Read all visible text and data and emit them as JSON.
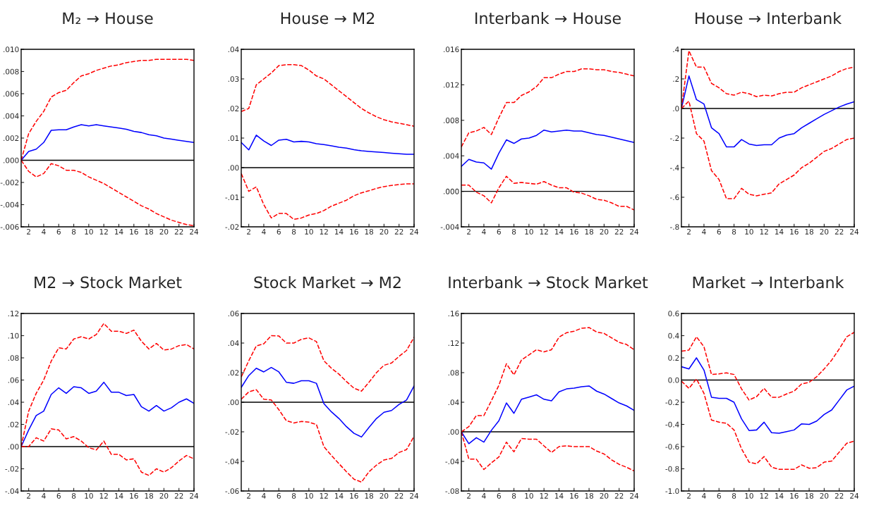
{
  "chart_data": [
    {
      "type": "line",
      "title": "M₂ → House",
      "x": [
        1,
        2,
        3,
        4,
        5,
        6,
        7,
        8,
        9,
        10,
        11,
        12,
        13,
        14,
        15,
        16,
        17,
        18,
        19,
        20,
        21,
        22,
        23,
        24
      ],
      "xlim": [
        1,
        24
      ],
      "xticks": [
        2,
        4,
        6,
        8,
        10,
        12,
        14,
        16,
        18,
        20,
        22,
        24
      ],
      "ylim": [
        -0.006,
        0.01
      ],
      "yticks": [
        {
          "value": 0.01,
          "label": ".010"
        },
        {
          "value": 0.008,
          "label": ".008"
        },
        {
          "value": 0.006,
          "label": ".006"
        },
        {
          "value": 0.004,
          "label": ".004"
        },
        {
          "value": 0.002,
          "label": ".002"
        },
        {
          "value": 0,
          "label": ".000"
        },
        {
          "value": -0.002,
          "label": "-.002"
        },
        {
          "value": -0.004,
          "label": "-.004"
        },
        {
          "value": -0.006,
          "label": "-.006"
        }
      ],
      "grid": false,
      "legend": false,
      "ref_lines": [
        {
          "axis": "y",
          "value": 0,
          "color": "#000000"
        }
      ],
      "series": [
        {
          "color": "#0000ff",
          "line_style": "solid",
          "values": [
            0,
            0.0008,
            0.001,
            0.0016,
            0.0027,
            0.00275,
            0.00275,
            0.003,
            0.0032,
            0.0031,
            0.0032,
            0.0031,
            0.003,
            0.0029,
            0.0028,
            0.0026,
            0.0025,
            0.0023,
            0.0022,
            0.002,
            0.0019,
            0.0018,
            0.0017,
            0.0016
          ]
        },
        {
          "color": "#ff0000",
          "line_style": "dashed",
          "values": [
            0,
            0.0024,
            0.0035,
            0.0044,
            0.0057,
            0.0061,
            0.0063,
            0.007,
            0.0076,
            0.0078,
            0.0081,
            0.0083,
            0.0085,
            0.0086,
            0.0088,
            0.0089,
            0.009,
            0.009,
            0.0091,
            0.0091,
            0.0091,
            0.0091,
            0.0091,
            0.009
          ]
        },
        {
          "color": "#ff0000",
          "line_style": "dashed",
          "values": [
            0,
            -0.001,
            -0.0015,
            -0.0012,
            -0.0003,
            -0.0005,
            -0.0009,
            -0.0009,
            -0.0011,
            -0.0015,
            -0.0018,
            -0.0021,
            -0.0025,
            -0.0029,
            -0.0033,
            -0.0037,
            -0.0041,
            -0.0044,
            -0.0048,
            -0.0051,
            -0.0054,
            -0.0056,
            -0.0058,
            -0.0059
          ]
        }
      ]
    },
    {
      "type": "line",
      "title": "House → M2",
      "x": [
        1,
        2,
        3,
        4,
        5,
        6,
        7,
        8,
        9,
        10,
        11,
        12,
        13,
        14,
        15,
        16,
        17,
        18,
        19,
        20,
        21,
        22,
        23,
        24
      ],
      "xlim": [
        1,
        24
      ],
      "xticks": [
        2,
        4,
        6,
        8,
        10,
        12,
        14,
        16,
        18,
        20,
        22,
        24
      ],
      "ylim": [
        -0.02,
        0.04
      ],
      "yticks": [
        {
          "value": 0.04,
          "label": ".04"
        },
        {
          "value": 0.03,
          "label": ".03"
        },
        {
          "value": 0.02,
          "label": ".02"
        },
        {
          "value": 0.01,
          "label": ".01"
        },
        {
          "value": 0,
          "label": ".00"
        },
        {
          "value": -0.01,
          "label": "-.01"
        },
        {
          "value": -0.02,
          "label": "-.02"
        }
      ],
      "grid": false,
      "legend": false,
      "ref_lines": [
        {
          "axis": "y",
          "value": 0,
          "color": "#000000"
        }
      ],
      "series": [
        {
          "color": "#0000ff",
          "line_style": "solid",
          "values": [
            0.0085,
            0.006,
            0.011,
            0.009,
            0.0075,
            0.0093,
            0.0096,
            0.0087,
            0.0089,
            0.0087,
            0.0081,
            0.0078,
            0.0074,
            0.0069,
            0.0066,
            0.0061,
            0.0057,
            0.0055,
            0.0053,
            0.0051,
            0.0049,
            0.0047,
            0.0045,
            0.0045
          ]
        },
        {
          "color": "#ff0000",
          "line_style": "dashed",
          "values": [
            0.019,
            0.02,
            0.028,
            0.03,
            0.032,
            0.0345,
            0.0348,
            0.0348,
            0.0345,
            0.033,
            0.031,
            0.03,
            0.028,
            0.026,
            0.024,
            0.022,
            0.02,
            0.0185,
            0.0172,
            0.0162,
            0.0155,
            0.015,
            0.0145,
            0.014
          ]
        },
        {
          "color": "#ff0000",
          "line_style": "dashed",
          "values": [
            -0.002,
            -0.008,
            -0.0065,
            -0.0125,
            -0.017,
            -0.0155,
            -0.0155,
            -0.0175,
            -0.017,
            -0.016,
            -0.0155,
            -0.0145,
            -0.013,
            -0.012,
            -0.011,
            -0.0095,
            -0.0085,
            -0.0078,
            -0.007,
            -0.0064,
            -0.006,
            -0.0057,
            -0.0055,
            -0.0055
          ]
        }
      ]
    },
    {
      "type": "line",
      "title": "Interbank → House",
      "x": [
        1,
        2,
        3,
        4,
        5,
        6,
        7,
        8,
        9,
        10,
        11,
        12,
        13,
        14,
        15,
        16,
        17,
        18,
        19,
        20,
        21,
        22,
        23,
        24
      ],
      "xlim": [
        1,
        24
      ],
      "xticks": [
        2,
        4,
        6,
        8,
        10,
        12,
        14,
        16,
        18,
        20,
        22,
        24
      ],
      "ylim": [
        -0.004,
        0.016
      ],
      "yticks": [
        {
          "value": 0.016,
          "label": ".016"
        },
        {
          "value": 0.012,
          "label": ".012"
        },
        {
          "value": 0.008,
          "label": ".008"
        },
        {
          "value": 0.004,
          "label": ".004"
        },
        {
          "value": 0,
          "label": ".000"
        },
        {
          "value": -0.004,
          "label": "-.004"
        }
      ],
      "grid": false,
      "legend": false,
      "ref_lines": [
        {
          "axis": "y",
          "value": 0,
          "color": "#000000"
        }
      ],
      "series": [
        {
          "color": "#0000ff",
          "line_style": "solid",
          "values": [
            0.0028,
            0.0036,
            0.0033,
            0.0032,
            0.0025,
            0.0043,
            0.0058,
            0.0054,
            0.0059,
            0.006,
            0.0063,
            0.0069,
            0.0067,
            0.0068,
            0.0069,
            0.0068,
            0.0068,
            0.0066,
            0.0064,
            0.0063,
            0.0061,
            0.0059,
            0.0057,
            0.0055
          ]
        },
        {
          "color": "#ff0000",
          "line_style": "dashed",
          "values": [
            0.005,
            0.0066,
            0.0068,
            0.0072,
            0.0064,
            0.0083,
            0.01,
            0.01,
            0.0108,
            0.0112,
            0.0118,
            0.0128,
            0.0128,
            0.0132,
            0.0135,
            0.0135,
            0.0138,
            0.0138,
            0.0137,
            0.0137,
            0.0135,
            0.0134,
            0.0132,
            0.013
          ]
        },
        {
          "color": "#ff0000",
          "line_style": "dashed",
          "values": [
            0.0007,
            0.0007,
            -0.0001,
            -0.0005,
            -0.0013,
            0.0004,
            0.0017,
            0.0009,
            0.001,
            0.0009,
            0.0008,
            0.0011,
            0.0007,
            0.0004,
            0.0004,
            -0.0001,
            -0.0002,
            -0.0005,
            -0.0009,
            -0.001,
            -0.0013,
            -0.0017,
            -0.0017,
            -0.0021
          ]
        }
      ]
    },
    {
      "type": "line",
      "title": "House → Interbank",
      "x": [
        1,
        2,
        3,
        4,
        5,
        6,
        7,
        8,
        9,
        10,
        11,
        12,
        13,
        14,
        15,
        16,
        17,
        18,
        19,
        20,
        21,
        22,
        23,
        24
      ],
      "xlim": [
        1,
        24
      ],
      "xticks": [
        2,
        4,
        6,
        8,
        10,
        12,
        14,
        16,
        18,
        20,
        22,
        24
      ],
      "ylim": [
        -0.8,
        0.4
      ],
      "yticks": [
        {
          "value": 0.4,
          "label": ".4"
        },
        {
          "value": 0.2,
          "label": ".2"
        },
        {
          "value": 0,
          "label": ".0"
        },
        {
          "value": -0.2,
          "label": "-.2"
        },
        {
          "value": -0.4,
          "label": "-.4"
        },
        {
          "value": -0.6,
          "label": "-.6"
        },
        {
          "value": -0.8,
          "label": "-.8"
        }
      ],
      "grid": false,
      "legend": false,
      "ref_lines": [
        {
          "axis": "y",
          "value": 0,
          "color": "#000000"
        }
      ],
      "series": [
        {
          "color": "#0000ff",
          "line_style": "solid",
          "values": [
            0,
            0.22,
            0.06,
            0.03,
            -0.13,
            -0.17,
            -0.26,
            -0.26,
            -0.21,
            -0.24,
            -0.25,
            -0.245,
            -0.245,
            -0.2,
            -0.18,
            -0.17,
            -0.13,
            -0.1,
            -0.07,
            -0.04,
            -0.015,
            0.01,
            0.03,
            0.045
          ]
        },
        {
          "color": "#ff0000",
          "line_style": "dashed",
          "values": [
            0,
            0.39,
            0.28,
            0.28,
            0.17,
            0.14,
            0.1,
            0.09,
            0.11,
            0.1,
            0.08,
            0.09,
            0.085,
            0.1,
            0.11,
            0.11,
            0.14,
            0.16,
            0.18,
            0.2,
            0.22,
            0.25,
            0.27,
            0.28
          ]
        },
        {
          "color": "#ff0000",
          "line_style": "dashed",
          "values": [
            0,
            0.05,
            -0.17,
            -0.22,
            -0.42,
            -0.48,
            -0.61,
            -0.61,
            -0.54,
            -0.58,
            -0.59,
            -0.58,
            -0.57,
            -0.51,
            -0.48,
            -0.45,
            -0.4,
            -0.37,
            -0.33,
            -0.29,
            -0.27,
            -0.24,
            -0.21,
            -0.2
          ]
        }
      ]
    },
    {
      "type": "line",
      "title": "M2 → Stock Market",
      "x": [
        1,
        2,
        3,
        4,
        5,
        6,
        7,
        8,
        9,
        10,
        11,
        12,
        13,
        14,
        15,
        16,
        17,
        18,
        19,
        20,
        21,
        22,
        23,
        24
      ],
      "xlim": [
        1,
        24
      ],
      "xticks": [
        2,
        4,
        6,
        8,
        10,
        12,
        14,
        16,
        18,
        20,
        22,
        24
      ],
      "ylim": [
        -0.04,
        0.12
      ],
      "yticks": [
        {
          "value": 0.12,
          "label": ".12"
        },
        {
          "value": 0.1,
          "label": ".10"
        },
        {
          "value": 0.08,
          "label": ".08"
        },
        {
          "value": 0.06,
          "label": ".06"
        },
        {
          "value": 0.04,
          "label": ".04"
        },
        {
          "value": 0.02,
          "label": ".02"
        },
        {
          "value": 0,
          "label": ".00"
        },
        {
          "value": -0.02,
          "label": "-.02"
        },
        {
          "value": -0.04,
          "label": "-.04"
        }
      ],
      "grid": false,
      "legend": false,
      "ref_lines": [
        {
          "axis": "y",
          "value": 0,
          "color": "#000000"
        }
      ],
      "series": [
        {
          "color": "#0000ff",
          "line_style": "solid",
          "values": [
            0,
            0.015,
            0.028,
            0.032,
            0.047,
            0.053,
            0.048,
            0.054,
            0.053,
            0.048,
            0.05,
            0.058,
            0.049,
            0.049,
            0.046,
            0.047,
            0.036,
            0.032,
            0.037,
            0.032,
            0.035,
            0.04,
            0.043,
            0.039
          ]
        },
        {
          "color": "#ff0000",
          "line_style": "dashed",
          "values": [
            0,
            0.032,
            0.048,
            0.06,
            0.077,
            0.089,
            0.088,
            0.097,
            0.099,
            0.097,
            0.101,
            0.111,
            0.104,
            0.104,
            0.102,
            0.105,
            0.095,
            0.088,
            0.093,
            0.087,
            0.088,
            0.091,
            0.092,
            0.088
          ]
        },
        {
          "color": "#ff0000",
          "line_style": "dashed",
          "values": [
            0,
            0,
            0.008,
            0.005,
            0.016,
            0.015,
            0.007,
            0.009,
            0.005,
            -0.001,
            -0.003,
            0.005,
            -0.007,
            -0.007,
            -0.012,
            -0.011,
            -0.023,
            -0.026,
            -0.02,
            -0.023,
            -0.019,
            -0.013,
            -0.008,
            -0.011
          ]
        }
      ]
    },
    {
      "type": "line",
      "title": "Stock Market → M2",
      "x": [
        1,
        2,
        3,
        4,
        5,
        6,
        7,
        8,
        9,
        10,
        11,
        12,
        13,
        14,
        15,
        16,
        17,
        18,
        19,
        20,
        21,
        22,
        23,
        24
      ],
      "xlim": [
        1,
        24
      ],
      "xticks": [
        2,
        4,
        6,
        8,
        10,
        12,
        14,
        16,
        18,
        20,
        22,
        24
      ],
      "ylim": [
        -0.06,
        0.06
      ],
      "yticks": [
        {
          "value": 0.06,
          "label": ".06"
        },
        {
          "value": 0.04,
          "label": ".04"
        },
        {
          "value": 0.02,
          "label": ".02"
        },
        {
          "value": 0,
          "label": ".00"
        },
        {
          "value": -0.02,
          "label": "-.02"
        },
        {
          "value": -0.04,
          "label": "-.04"
        },
        {
          "value": -0.06,
          "label": "-.06"
        }
      ],
      "grid": false,
      "legend": false,
      "ref_lines": [
        {
          "axis": "y",
          "value": 0,
          "color": "#000000"
        }
      ],
      "series": [
        {
          "color": "#0000ff",
          "line_style": "solid",
          "values": [
            0.01,
            0.018,
            0.023,
            0.0205,
            0.0235,
            0.0205,
            0.0135,
            0.0128,
            0.0145,
            0.0145,
            0.0128,
            -0.001,
            -0.0065,
            -0.011,
            -0.0165,
            -0.021,
            -0.0235,
            -0.017,
            -0.011,
            -0.0068,
            -0.0056,
            -0.0015,
            0.0015,
            0.011
          ]
        },
        {
          "color": "#ff0000",
          "line_style": "dashed",
          "values": [
            0.017,
            0.028,
            0.038,
            0.0395,
            0.045,
            0.0448,
            0.04,
            0.04,
            0.0425,
            0.0435,
            0.041,
            0.028,
            0.023,
            0.019,
            0.014,
            0.0095,
            0.0075,
            0.0135,
            0.02,
            0.025,
            0.0265,
            0.031,
            0.035,
            0.044
          ]
        },
        {
          "color": "#ff0000",
          "line_style": "dashed",
          "values": [
            0.002,
            0.007,
            0.0085,
            0.002,
            0.0015,
            -0.005,
            -0.0125,
            -0.014,
            -0.013,
            -0.0135,
            -0.015,
            -0.03,
            -0.036,
            -0.0415,
            -0.047,
            -0.052,
            -0.054,
            -0.047,
            -0.0425,
            -0.039,
            -0.038,
            -0.034,
            -0.032,
            -0.023
          ]
        }
      ]
    },
    {
      "type": "line",
      "title": "Interbank → Stock Market",
      "x": [
        1,
        2,
        3,
        4,
        5,
        6,
        7,
        8,
        9,
        10,
        11,
        12,
        13,
        14,
        15,
        16,
        17,
        18,
        19,
        20,
        21,
        22,
        23,
        24
      ],
      "xlim": [
        1,
        24
      ],
      "xticks": [
        2,
        4,
        6,
        8,
        10,
        12,
        14,
        16,
        18,
        20,
        22,
        24
      ],
      "ylim": [
        -0.08,
        0.16
      ],
      "yticks": [
        {
          "value": 0.16,
          "label": ".16"
        },
        {
          "value": 0.12,
          "label": ".12"
        },
        {
          "value": 0.08,
          "label": ".08"
        },
        {
          "value": 0.04,
          "label": ".04"
        },
        {
          "value": 0,
          "label": ".00"
        },
        {
          "value": -0.04,
          "label": "-.04"
        },
        {
          "value": -0.08,
          "label": "-.08"
        }
      ],
      "grid": false,
      "legend": false,
      "ref_lines": [
        {
          "axis": "y",
          "value": 0,
          "color": "#000000"
        }
      ],
      "series": [
        {
          "color": "#0000ff",
          "line_style": "solid",
          "values": [
            0,
            -0.016,
            -0.008,
            -0.014,
            0.002,
            0.015,
            0.039,
            0.025,
            0.044,
            0.047,
            0.05,
            0.044,
            0.042,
            0.054,
            0.058,
            0.059,
            0.061,
            0.062,
            0.055,
            0.051,
            0.045,
            0.039,
            0.035,
            0.029
          ]
        },
        {
          "color": "#ff0000",
          "line_style": "dashed",
          "values": [
            0,
            0.007,
            0.022,
            0.022,
            0.042,
            0.063,
            0.092,
            0.077,
            0.097,
            0.104,
            0.111,
            0.108,
            0.111,
            0.128,
            0.134,
            0.136,
            0.14,
            0.141,
            0.135,
            0.133,
            0.127,
            0.121,
            0.118,
            0.111
          ]
        },
        {
          "color": "#ff0000",
          "line_style": "dashed",
          "values": [
            0,
            -0.037,
            -0.037,
            -0.051,
            -0.042,
            -0.034,
            -0.014,
            -0.027,
            -0.009,
            -0.01,
            -0.01,
            -0.019,
            -0.028,
            -0.02,
            -0.019,
            -0.02,
            -0.02,
            -0.02,
            -0.026,
            -0.03,
            -0.038,
            -0.044,
            -0.048,
            -0.053
          ]
        }
      ]
    },
    {
      "type": "line",
      "title": "Market → Interbank",
      "x": [
        1,
        2,
        3,
        4,
        5,
        6,
        7,
        8,
        9,
        10,
        11,
        12,
        13,
        14,
        15,
        16,
        17,
        18,
        19,
        20,
        21,
        22,
        23,
        24
      ],
      "xlim": [
        1,
        24
      ],
      "xticks": [
        2,
        4,
        6,
        8,
        10,
        12,
        14,
        16,
        18,
        20,
        22,
        24
      ],
      "ylim": [
        -1.0,
        0.6
      ],
      "yticks": [
        {
          "value": 0.6,
          "label": "0.6"
        },
        {
          "value": 0.4,
          "label": "0.4"
        },
        {
          "value": 0.2,
          "label": "0.2"
        },
        {
          "value": 0,
          "label": "0.0"
        },
        {
          "value": -0.2,
          "label": "-0.2"
        },
        {
          "value": -0.4,
          "label": "-0.4"
        },
        {
          "value": -0.6,
          "label": "-0.6"
        },
        {
          "value": -0.8,
          "label": "-0.8"
        },
        {
          "value": -1.0,
          "label": "-1.0"
        }
      ],
      "grid": false,
      "legend": false,
      "ref_lines": [
        {
          "axis": "y",
          "value": 0,
          "color": "#000000"
        }
      ],
      "series": [
        {
          "color": "#0000ff",
          "line_style": "solid",
          "values": [
            0.12,
            0.1,
            0.2,
            0.09,
            -0.155,
            -0.165,
            -0.165,
            -0.2,
            -0.35,
            -0.455,
            -0.45,
            -0.38,
            -0.475,
            -0.48,
            -0.465,
            -0.45,
            -0.395,
            -0.4,
            -0.37,
            -0.31,
            -0.27,
            -0.18,
            -0.09,
            -0.055
          ]
        },
        {
          "color": "#ff0000",
          "line_style": "dashed",
          "values": [
            0.26,
            0.27,
            0.39,
            0.3,
            0.05,
            0.055,
            0.065,
            0.05,
            -0.08,
            -0.18,
            -0.15,
            -0.075,
            -0.155,
            -0.155,
            -0.125,
            -0.1,
            -0.035,
            -0.02,
            0.03,
            0.1,
            0.18,
            0.28,
            0.39,
            0.43
          ]
        },
        {
          "color": "#ff0000",
          "line_style": "dashed",
          "values": [
            -0.01,
            -0.075,
            0.01,
            -0.12,
            -0.36,
            -0.38,
            -0.39,
            -0.45,
            -0.62,
            -0.74,
            -0.755,
            -0.69,
            -0.785,
            -0.805,
            -0.805,
            -0.805,
            -0.765,
            -0.795,
            -0.79,
            -0.74,
            -0.73,
            -0.65,
            -0.57,
            -0.55
          ]
        }
      ]
    }
  ]
}
